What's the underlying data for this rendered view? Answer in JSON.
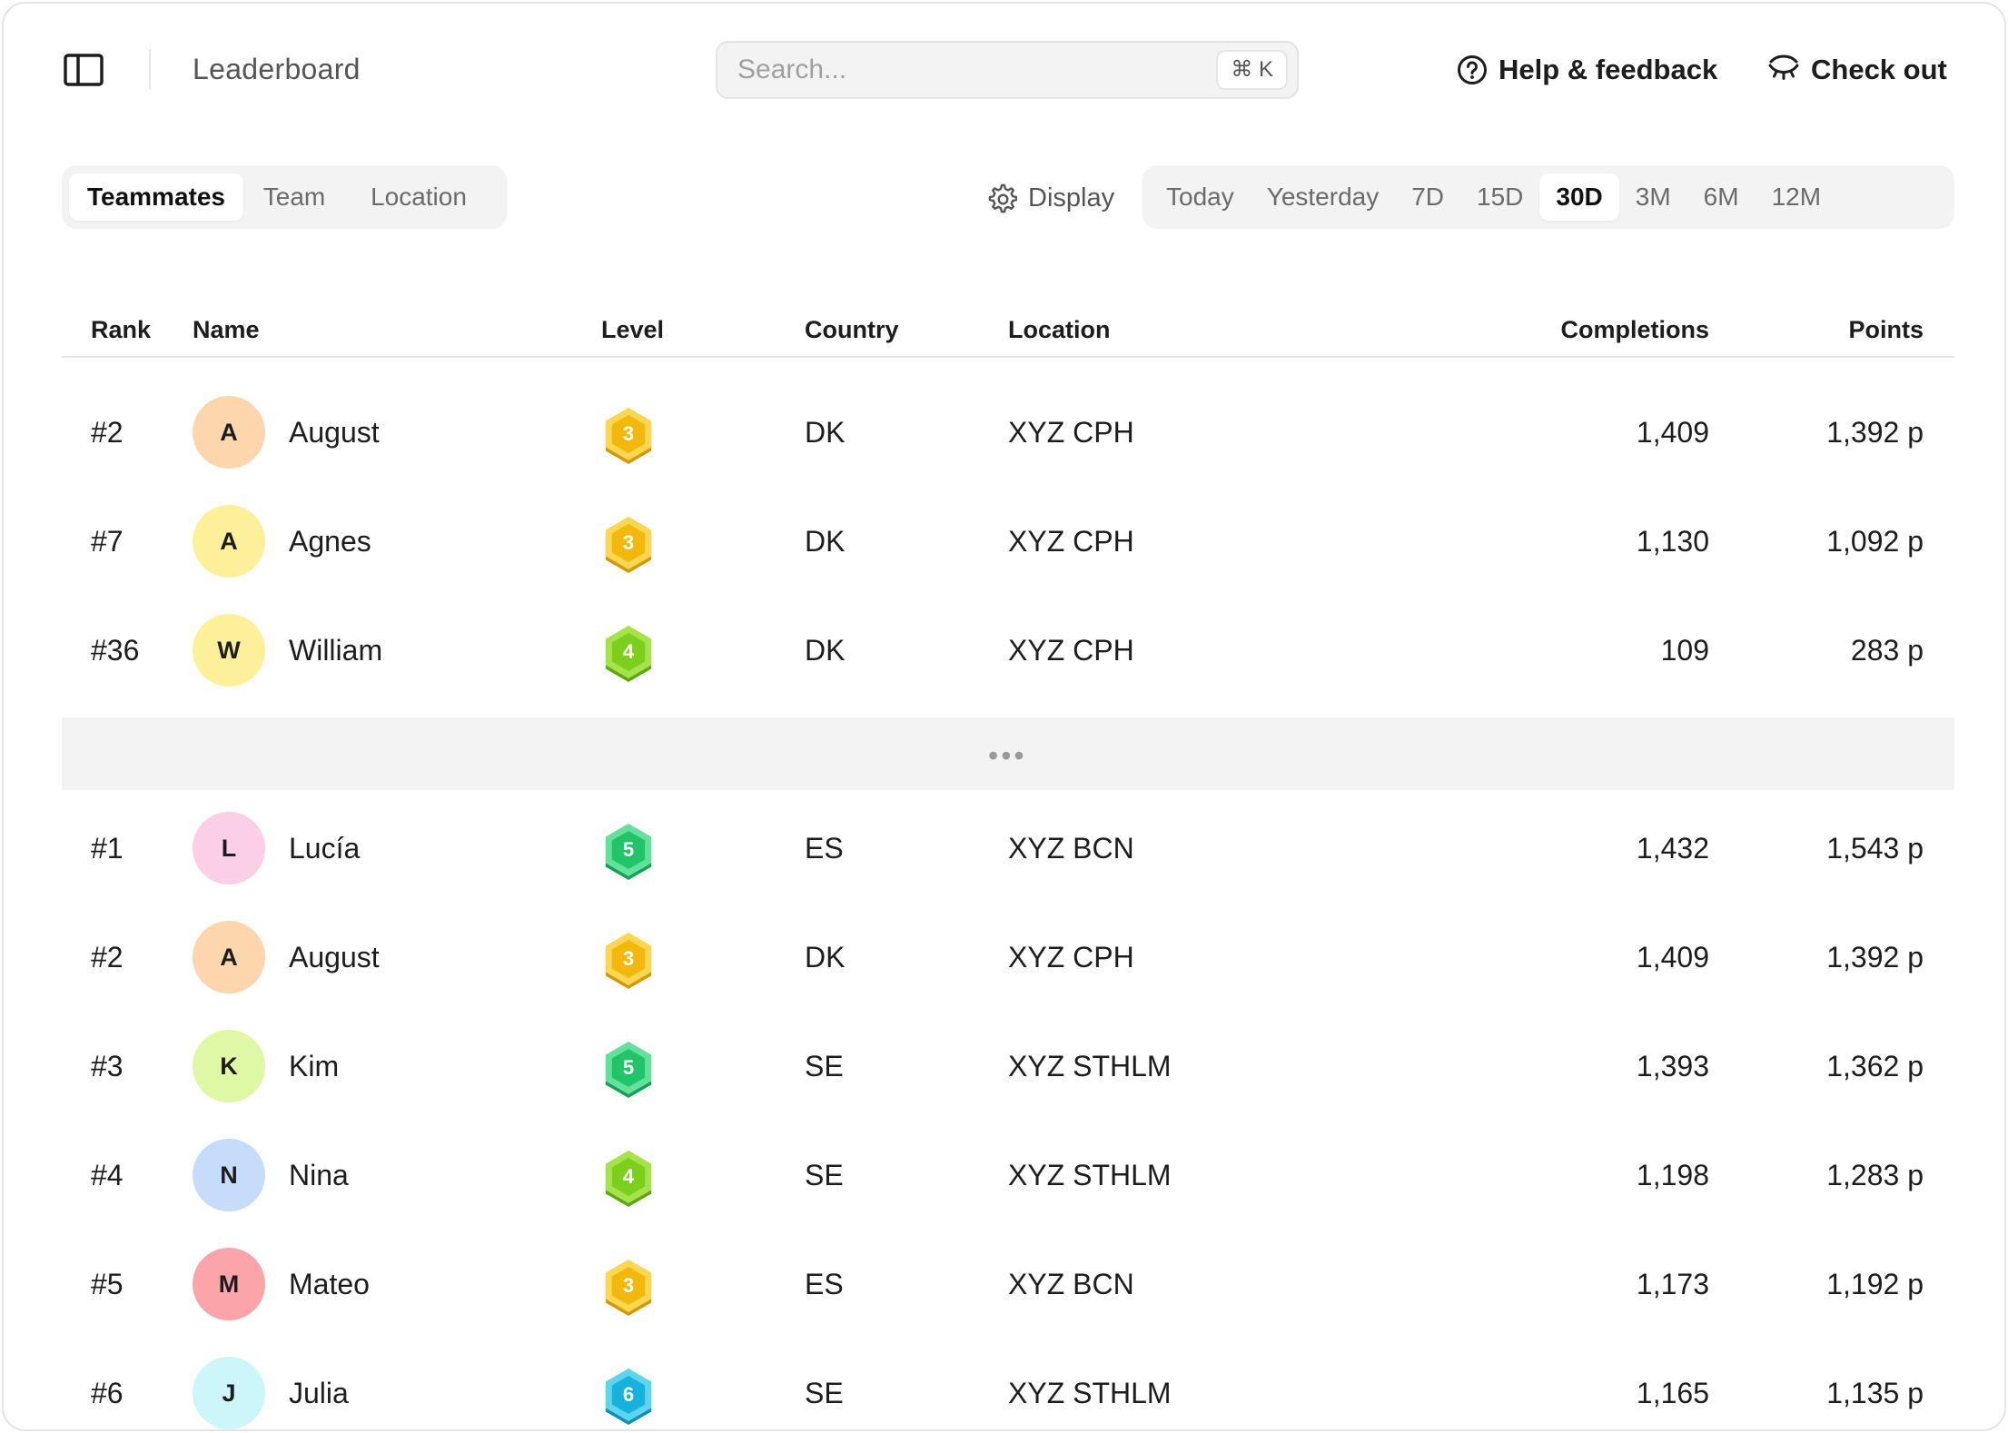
{
  "header": {
    "title": "Leaderboard",
    "search_placeholder": "Search...",
    "search_shortcut": "⌘ K",
    "help_label": "Help & feedback",
    "checkout_label": "Check out"
  },
  "view_tabs": [
    {
      "label": "Teammates",
      "active": true
    },
    {
      "label": "Team",
      "active": false
    },
    {
      "label": "Location",
      "active": false
    }
  ],
  "display_label": "Display",
  "ranges": [
    {
      "label": "Today",
      "active": false
    },
    {
      "label": "Yesterday",
      "active": false
    },
    {
      "label": "7D",
      "active": false
    },
    {
      "label": "15D",
      "active": false
    },
    {
      "label": "30D",
      "active": true
    },
    {
      "label": "3M",
      "active": false
    },
    {
      "label": "6M",
      "active": false
    },
    {
      "label": "12M",
      "active": false
    }
  ],
  "columns": {
    "rank": "Rank",
    "name": "Name",
    "level": "Level",
    "country": "Country",
    "location": "Location",
    "completions": "Completions",
    "points": "Points"
  },
  "team_rows": [
    {
      "rank": "#2",
      "initial": "A",
      "name": "August",
      "level": "3",
      "country": "DK",
      "location": "XYZ CPH",
      "completions": "1,409",
      "points": "1,392 p",
      "avatar_color": "#fdd6ae",
      "badge": "gold"
    },
    {
      "rank": "#7",
      "initial": "A",
      "name": "Agnes",
      "level": "3",
      "country": "DK",
      "location": "XYZ CPH",
      "completions": "1,130",
      "points": "1,092 p",
      "avatar_color": "#fdf09a",
      "badge": "gold"
    },
    {
      "rank": "#36",
      "initial": "W",
      "name": "William",
      "level": "4",
      "country": "DK",
      "location": "XYZ CPH",
      "completions": "109",
      "points": "283 p",
      "avatar_color": "#fdf09a",
      "badge": "lime"
    }
  ],
  "leaderboard_rows": [
    {
      "rank": "#1",
      "initial": "L",
      "name": "Lucía",
      "level": "5",
      "country": "ES",
      "location": "XYZ BCN",
      "completions": "1,432",
      "points": "1,543 p",
      "avatar_color": "#fbd0e6",
      "badge": "green"
    },
    {
      "rank": "#2",
      "initial": "A",
      "name": "August",
      "level": "3",
      "country": "DK",
      "location": "XYZ CPH",
      "completions": "1,409",
      "points": "1,392 p",
      "avatar_color": "#fdd6ae",
      "badge": "gold"
    },
    {
      "rank": "#3",
      "initial": "K",
      "name": "Kim",
      "level": "5",
      "country": "SE",
      "location": "XYZ STHLM",
      "completions": "1,393",
      "points": "1,362 p",
      "avatar_color": "#def8a6",
      "badge": "green"
    },
    {
      "rank": "#4",
      "initial": "N",
      "name": "Nina",
      "level": "4",
      "country": "SE",
      "location": "XYZ STHLM",
      "completions": "1,198",
      "points": "1,283 p",
      "avatar_color": "#c5dcfb",
      "badge": "lime"
    },
    {
      "rank": "#5",
      "initial": "M",
      "name": "Mateo",
      "level": "3",
      "country": "ES",
      "location": "XYZ BCN",
      "completions": "1,173",
      "points": "1,192 p",
      "avatar_color": "#fba4aa",
      "badge": "gold"
    },
    {
      "rank": "#6",
      "initial": "J",
      "name": "Julia",
      "level": "6",
      "country": "SE",
      "location": "XYZ STHLM",
      "completions": "1,165",
      "points": "1,135 p",
      "avatar_color": "#cdf6fb",
      "badge": "cyan"
    }
  ],
  "badge_colors": {
    "gold": {
      "fill": "#f2b90c",
      "ring": "#fbd650",
      "shadow": "#d49708"
    },
    "lime": {
      "fill": "#7ccf1c",
      "ring": "#a6e34a",
      "shadow": "#5ca810"
    },
    "green": {
      "fill": "#22c46a",
      "ring": "#63e09a",
      "shadow": "#14a154"
    },
    "cyan": {
      "fill": "#15b3dc",
      "ring": "#5fd4f0",
      "shadow": "#0e8fb3"
    }
  }
}
